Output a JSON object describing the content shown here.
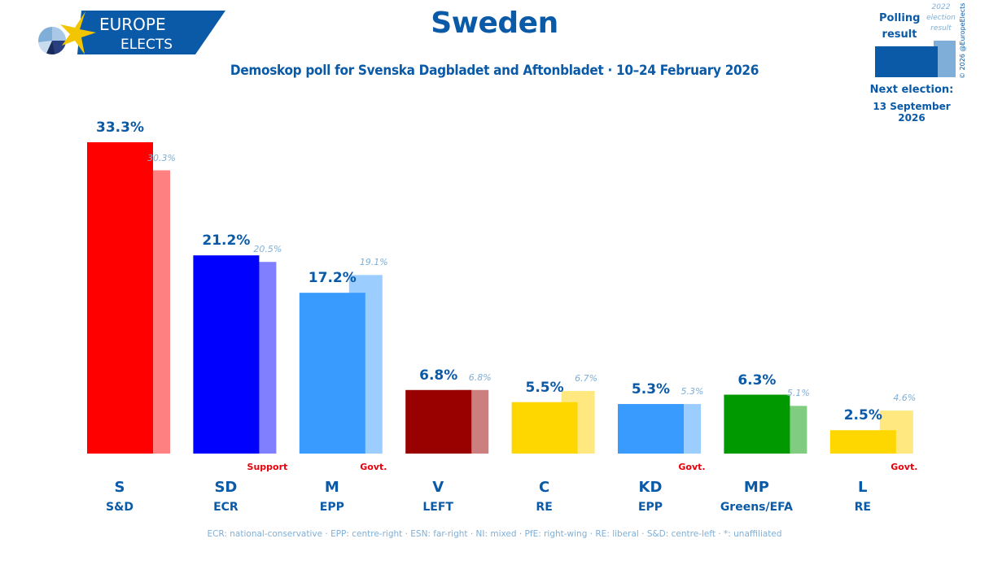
{
  "logo": {
    "line1": "EUROPE",
    "line2": "ELECTS"
  },
  "header": {
    "title": "Sweden",
    "subtitle": "Demoskop poll for Svenska Dagbladet and Aftonbladet · 10–24 February 2026"
  },
  "legend": {
    "polling_label": "Polling result",
    "election_label": "2022 election result",
    "copyright": "© 2026 @EuropeElects",
    "next_election_label": "Next election:",
    "next_election_date": "13 September 2026",
    "polling_color": "#0a5aa8",
    "election_color": "#7fafd8"
  },
  "footnote": "ECR: national-conservative · EPP: centre-right · ESN: far-right · NI: mixed · PfE: right-wing · RE: liberal · S&D: centre-left · *: unaffiliated",
  "chart_data": {
    "type": "bar",
    "title": "Sweden",
    "subtitle": "Demoskop poll for Svenska Dagbladet and Aftonbladet · 10–24 February 2026",
    "xlabel": "",
    "ylabel": "",
    "ylim": [
      0,
      33.3
    ],
    "grid": false,
    "categories": [
      "S",
      "SD",
      "M",
      "V",
      "C",
      "KD",
      "MP",
      "L"
    ],
    "groups": [
      "S&D",
      "ECR",
      "EPP",
      "LEFT",
      "RE",
      "EPP",
      "Greens/EFA",
      "RE"
    ],
    "status": [
      "",
      "Support",
      "Govt.",
      "",
      "",
      "Govt.",
      "",
      "Govt."
    ],
    "series": [
      {
        "name": "Polling result",
        "values": [
          33.3,
          21.2,
          17.2,
          6.8,
          5.5,
          5.3,
          6.3,
          2.5
        ],
        "labels": [
          "33.3%",
          "21.2%",
          "17.2%",
          "6.8%",
          "5.5%",
          "5.3%",
          "6.3%",
          "2.5%"
        ]
      },
      {
        "name": "2022 election result",
        "values": [
          30.3,
          20.5,
          19.1,
          6.8,
          6.7,
          5.3,
          5.1,
          4.6
        ],
        "labels": [
          "30.3%",
          "20.5%",
          "19.1%",
          "6.8%",
          "6.7%",
          "5.3%",
          "5.1%",
          "4.6%"
        ]
      }
    ],
    "colors": [
      "#ff0000",
      "#0000ff",
      "#3a9bff",
      "#990000",
      "#ffd700",
      "#3a9bff",
      "#009900",
      "#ffd700"
    ],
    "prev_colors": [
      "#ff8080",
      "#8080ff",
      "#9ccdff",
      "#cc7f7f",
      "#ffe880",
      "#9ccdff",
      "#80cc80",
      "#ffe880"
    ]
  }
}
